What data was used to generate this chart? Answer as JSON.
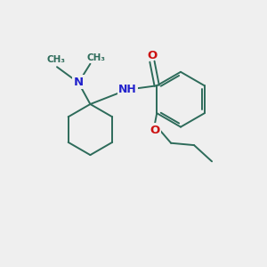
{
  "background_color": "#efefef",
  "bond_color": "#2d6b5a",
  "N_color": "#2222cc",
  "O_color": "#cc1111",
  "bond_width": 1.4,
  "figsize": [
    3.0,
    3.0
  ],
  "dpi": 100,
  "xlim": [
    0,
    10
  ],
  "ylim": [
    0,
    10
  ]
}
